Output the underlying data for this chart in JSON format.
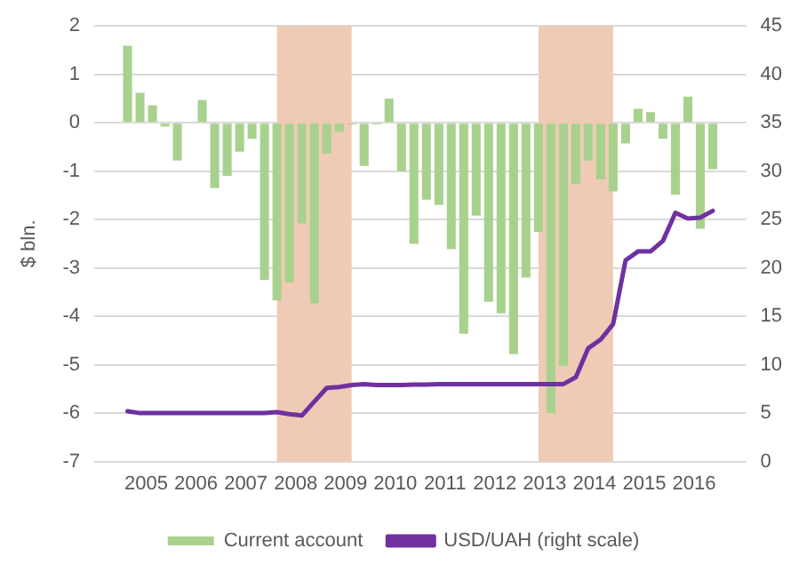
{
  "chart_data": {
    "type": "bar",
    "ylabel": "$ bln.",
    "x": [
      2005,
      2005.25,
      2005.5,
      2005.75,
      2006,
      2006.25,
      2006.5,
      2006.75,
      2007,
      2007.25,
      2007.5,
      2007.75,
      2008,
      2008.25,
      2008.5,
      2008.75,
      2009,
      2009.25,
      2009.5,
      2009.75,
      2010,
      2010.25,
      2010.5,
      2010.75,
      2011,
      2011.25,
      2011.5,
      2011.75,
      2012,
      2012.25,
      2012.5,
      2012.75,
      2013,
      2013.25,
      2013.5,
      2013.75,
      2014,
      2014.25,
      2014.5,
      2014.75,
      2015,
      2015.25,
      2015.5,
      2015.75,
      2016,
      2016.25,
      2016.5,
      2016.75
    ],
    "series": [
      {
        "name": "Current account",
        "color": "#a9d18e",
        "values": [
          1.59,
          0.62,
          0.36,
          -0.08,
          -0.78,
          0,
          0.47,
          -1.35,
          -1.1,
          -0.6,
          -0.33,
          -3.25,
          -3.67,
          -3.3,
          -2.08,
          -3.73,
          -0.64,
          -0.19,
          -0.04,
          -0.89,
          -0.04,
          0.5,
          -1.0,
          -2.5,
          -1.59,
          -1.7,
          -2.61,
          -4.36,
          -1.92,
          -3.7,
          -3.94,
          -4.78,
          -3.2,
          -2.26,
          -6.0,
          -5.02,
          -1.27,
          -0.78,
          -1.17,
          -1.42,
          -0.43,
          0.29,
          0.22,
          -0.33,
          -1.49,
          0.54,
          -2.19,
          -0.96
        ]
      },
      {
        "name": "USD/UAH (right scale)",
        "type": "line",
        "axis": "y2",
        "color": "#7030a0",
        "values": [
          5.2,
          5.0,
          5.0,
          5.0,
          5.0,
          5.0,
          5.0,
          5.0,
          5.0,
          5.0,
          5.0,
          5.0,
          5.1,
          4.9,
          4.75,
          6.2,
          7.6,
          7.7,
          7.9,
          8.0,
          7.9,
          7.9,
          7.9,
          7.95,
          7.95,
          8.0,
          8.0,
          8.0,
          8.0,
          8.0,
          8.0,
          8.0,
          8.0,
          8.0,
          8.0,
          8.0,
          8.7,
          11.7,
          12.6,
          14.2,
          20.8,
          21.7,
          21.7,
          22.8,
          25.7,
          25.1,
          25.2,
          25.9
        ]
      }
    ],
    "xlim": [
      2004.875,
      2016.875
    ],
    "xticks": [
      {
        "value": 2005.375,
        "label": "2005"
      },
      {
        "value": 2006.375,
        "label": "2006"
      },
      {
        "value": 2007.375,
        "label": "2007"
      },
      {
        "value": 2008.375,
        "label": "2008"
      },
      {
        "value": 2009.375,
        "label": "2009"
      },
      {
        "value": 2010.375,
        "label": "2010"
      },
      {
        "value": 2011.375,
        "label": "2011"
      },
      {
        "value": 2012.375,
        "label": "2012"
      },
      {
        "value": 2013.375,
        "label": "2013"
      },
      {
        "value": 2014.375,
        "label": "2014"
      },
      {
        "value": 2015.375,
        "label": "2015"
      },
      {
        "value": 2016.375,
        "label": "2016"
      }
    ],
    "ylim": [
      -7,
      2
    ],
    "yticks": [
      -7,
      -6,
      -5,
      -4,
      -3,
      -2,
      -1,
      0,
      1,
      2
    ],
    "y2lim": [
      0,
      45
    ],
    "y2ticks": [
      0,
      5,
      10,
      15,
      20,
      25,
      30,
      35,
      40,
      45
    ],
    "bands": [
      {
        "axis": "x",
        "from": 2008.0,
        "to": 2009.5,
        "color": "#efcbb5"
      },
      {
        "axis": "x",
        "from": 2013.25,
        "to": 2014.75,
        "color": "#efcbb5"
      }
    ],
    "grid": "y",
    "legend": "bottom"
  }
}
